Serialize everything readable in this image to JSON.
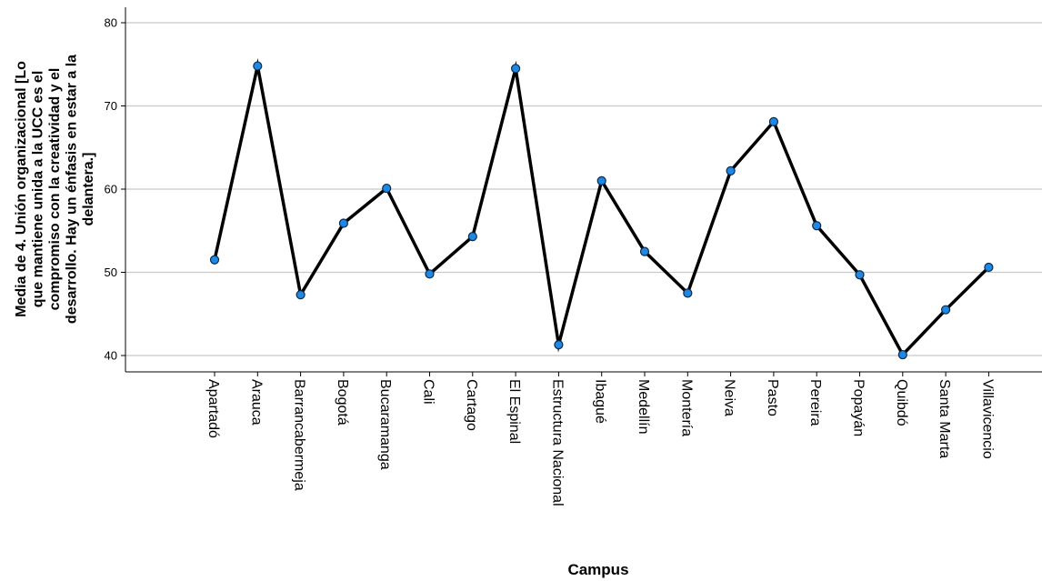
{
  "chart_data": {
    "type": "line",
    "xlabel": "Campus",
    "ylabel_lines": [
      "Media de 4. Unión organizacional [Lo",
      "que mantiene unida a la UCC es el",
      "compromiso con la creatividad y el",
      "desarrollo. Hay un énfasis en estar a la",
      "delantera.]"
    ],
    "ylim": [
      38,
      82
    ],
    "yticks": [
      40,
      50,
      60,
      70,
      80
    ],
    "grid": true,
    "categories": [
      "Apartadó",
      "Arauca",
      "Barrancabermeja",
      "Bogotá",
      "Bucaramanga",
      "Cali",
      "Cartago",
      "El Espinal",
      "Estructura Nacional",
      "Ibagué",
      "Medellín",
      "Montería",
      "Neiva",
      "Pasto",
      "Pereira",
      "Popayán",
      "Quibdó",
      "Santa Marta",
      "Villavicencio"
    ],
    "values": [
      51.5,
      74.8,
      47.3,
      55.9,
      60.1,
      49.8,
      54.3,
      74.5,
      41.3,
      61.0,
      52.5,
      47.5,
      62.2,
      68.1,
      55.6,
      49.7,
      40.1,
      45.5,
      50.6
    ],
    "colors": {
      "line": "#000000",
      "marker": "#1e88e5",
      "grid": "#c8c8c8"
    }
  }
}
